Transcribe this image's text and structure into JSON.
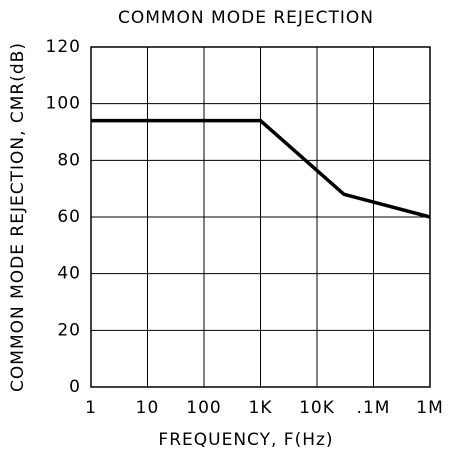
{
  "chart_data": {
    "type": "line",
    "title": "COMMON MODE REJECTION",
    "xlabel": "FREQUENCY, F(Hz)",
    "ylabel": "COMMON MODE REJECTION, CMR(dB)",
    "x": [
      1,
      1000,
      30000,
      1000000
    ],
    "values": [
      94,
      94,
      68,
      60
    ],
    "color": "#000000",
    "xscale": "log",
    "xlim": [
      1,
      1000000
    ],
    "xticks": [
      1,
      10,
      100,
      {
        "value": 1000,
        "label": "1K"
      },
      {
        "value": 10000,
        "label": "10K"
      },
      {
        "value": 100000,
        "label": ".1M"
      },
      {
        "value": 1000000,
        "label": "1M"
      }
    ],
    "ylim": [
      0,
      120
    ],
    "yticks": [
      0,
      20,
      40,
      60,
      80,
      100,
      120
    ],
    "grid": true
  }
}
